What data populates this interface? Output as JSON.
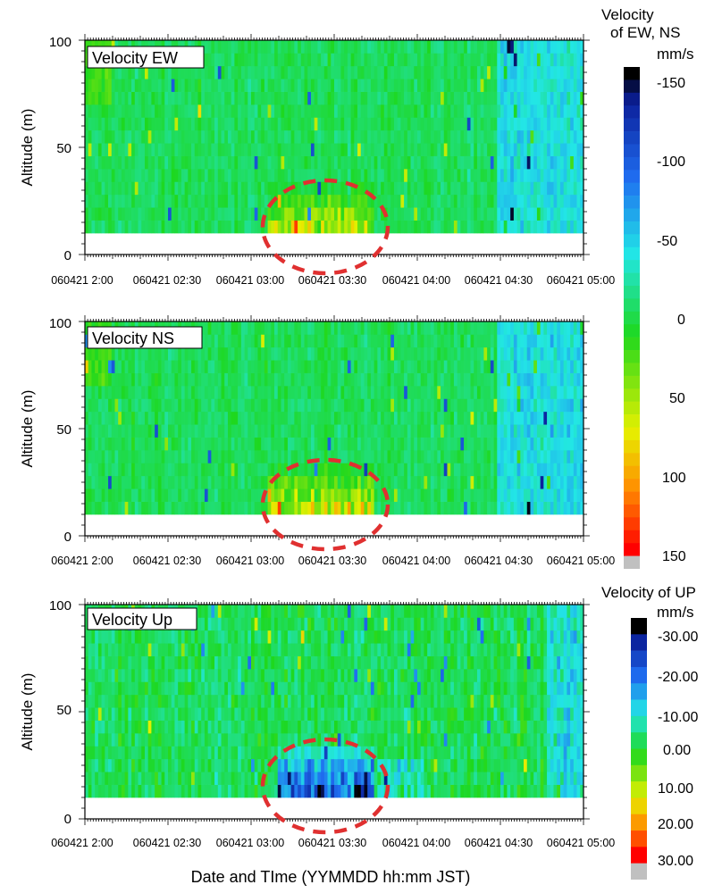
{
  "xlabel": "Date and TIme (YYMMDD hh:mm JST)",
  "ylabel": "Altitude (m)",
  "y_ticks": [
    "0",
    "50",
    "100"
  ],
  "x_ticks": [
    "060421 2:00",
    "060421 02:30",
    "060421 03:00",
    "060421 03:30",
    "060421 04:00",
    "060421 04:30",
    "060421 05:00"
  ],
  "colorbar_ew_ns": {
    "title_line1": "Velocity",
    "title_line2": "of EW, NS",
    "unit": "mm/s",
    "tick_labels": [
      "-150",
      "-100",
      "-50",
      "0",
      "50",
      "100",
      "150"
    ],
    "range": [
      -150,
      150
    ]
  },
  "colorbar_up": {
    "title": "Velocity of UP",
    "unit": "mm/s",
    "tick_labels": [
      "-30.00",
      "-20.00",
      "-10.00",
      "0.00",
      "10.00",
      "20.00",
      "30.00"
    ],
    "range": [
      -30,
      30
    ]
  },
  "colors": {
    "dark": "#000000",
    "navy": "#0b1f9a",
    "blue": "#1f6df0",
    "cyan": "#22e6e6",
    "green": "#1ed81e",
    "yellow": "#e6f000",
    "orange": "#ff9000",
    "red": "#ff0000",
    "missing": "#c0c0c0",
    "highlight": "#e03030"
  },
  "chart_data": [
    {
      "type": "heatmap",
      "title": "Velocity EW",
      "xlabel": "Date and TIme (YYMMDD hh:mm JST)",
      "ylabel": "Altitude (m)",
      "x_range": [
        "060421 02:00",
        "060421 05:00"
      ],
      "ylim": [
        0,
        100
      ],
      "data_altitude_range": [
        10,
        100
      ],
      "value_range": [
        -150,
        150
      ],
      "unit": "mm/s",
      "dominant_value": 0,
      "annotation": "dashed red circle around 03:10-03:40, 10-35 m (strong positive 50-100 mm/s)"
    },
    {
      "type": "heatmap",
      "title": "Velocity NS",
      "xlabel": "Date and TIme (YYMMDD hh:mm JST)",
      "ylabel": "Altitude (m)",
      "x_range": [
        "060421 02:00",
        "060421 05:00"
      ],
      "ylim": [
        0,
        100
      ],
      "data_altitude_range": [
        10,
        100
      ],
      "value_range": [
        -150,
        150
      ],
      "unit": "mm/s",
      "dominant_value": 0,
      "annotation": "dashed red circle around 03:10-03:40, 10-35 m (strong positive 50-150 mm/s)"
    },
    {
      "type": "heatmap",
      "title": "Velocity Up",
      "xlabel": "Date and TIme (YYMMDD hh:mm JST)",
      "ylabel": "Altitude (m)",
      "x_range": [
        "060421 02:00",
        "060421 05:00"
      ],
      "ylim": [
        0,
        100
      ],
      "data_altitude_range": [
        10,
        100
      ],
      "value_range": [
        -30,
        30
      ],
      "unit": "mm/s",
      "dominant_value": 0,
      "annotation": "dashed red circle around 03:10-03:40, 10-35 m (strong negative -20 to -30 mm/s)"
    }
  ]
}
